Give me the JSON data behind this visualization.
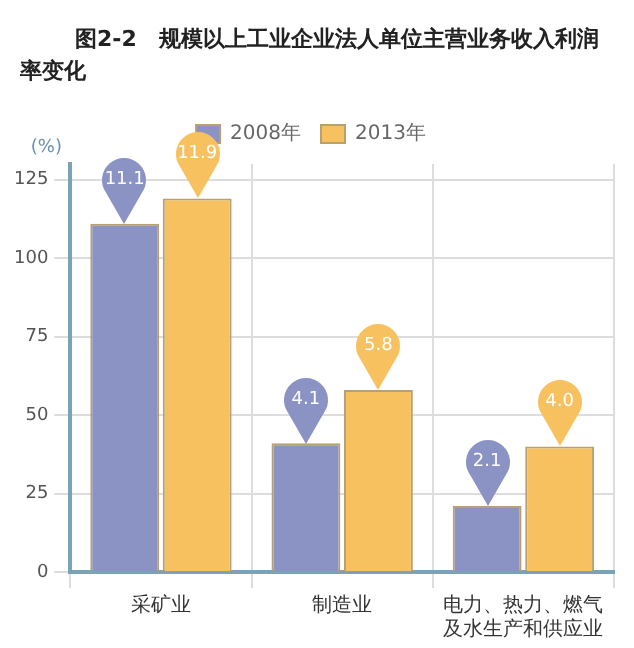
{
  "chart_data": {
    "type": "bar",
    "title": "图2-2　规模以上工业企业法人单位主营业务收入利润率变化",
    "ylabel": "(%)",
    "categories": [
      "采矿业",
      "制造业",
      "电力、热力、燃气及水生产和供应业"
    ],
    "series": [
      {
        "name": "2008年",
        "color": "#8a93c4",
        "values": [
          111,
          41,
          21
        ]
      },
      {
        "name": "2013年",
        "color": "#f7c160",
        "values": [
          119,
          58,
          40
        ]
      }
    ],
    "annotations": [
      {
        "text": "11.1",
        "x": "采矿业",
        "y": 111
      },
      {
        "text": "4.1",
        "x": "制造业",
        "y": 41
      },
      {
        "text": "2.1",
        "x": "电力、热力、燃气及水生产和供应业",
        "y": 21
      },
      {
        "text": "11.9",
        "x": "采矿业",
        "y": 119
      },
      {
        "text": "5.8",
        "x": "制造业",
        "y": 58
      },
      {
        "text": "4.0",
        "x": "电力、热力、燃气及水生产和供应业",
        "y": 40
      }
    ],
    "ylim": [
      0,
      130
    ],
    "yticks": [
      0,
      25,
      50,
      75,
      100,
      125
    ],
    "grid": true,
    "legend": "top"
  }
}
